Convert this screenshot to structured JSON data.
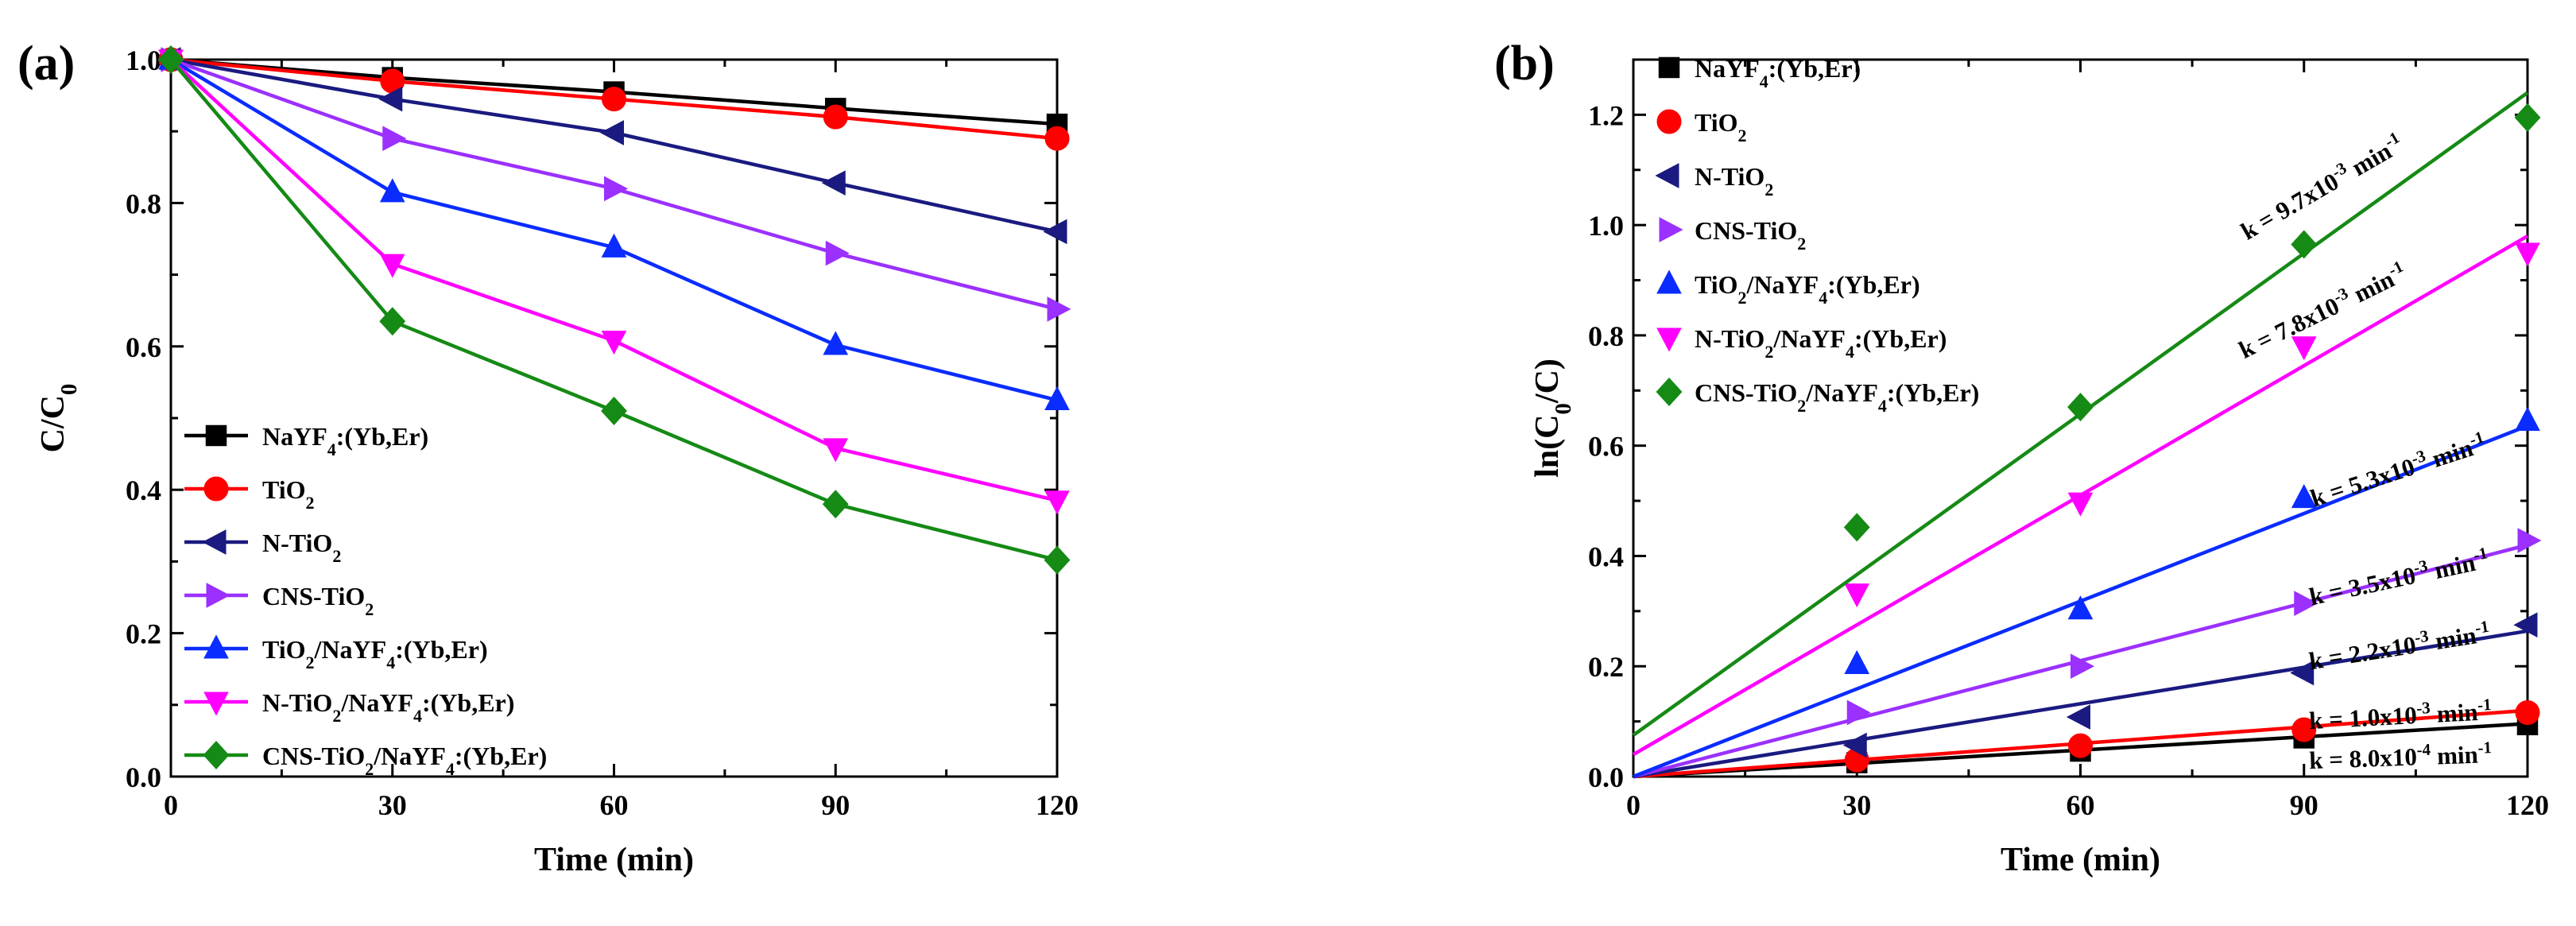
{
  "chart_data": [
    {
      "panel": "(a)",
      "type": "line",
      "title": "",
      "xlabel": "Time (min)",
      "ylabel_parts": [
        {
          "t": "C/C"
        },
        {
          "t": "0",
          "sub": true
        }
      ],
      "xlim": [
        0,
        120
      ],
      "ylim": [
        0.0,
        1.0
      ],
      "xticks": [
        "0",
        "30",
        "60",
        "90",
        "120"
      ],
      "yticks": [
        "0.0",
        "0.2",
        "0.4",
        "0.6",
        "0.8",
        "1.0"
      ],
      "x": [
        0,
        30,
        60,
        90,
        120
      ],
      "legend_position": "bottom-left",
      "series": [
        {
          "id": "s1",
          "color": "#000000",
          "marker": "square",
          "legend_parts": [
            {
              "t": "NaYF"
            },
            {
              "t": "4",
              "sub": true
            },
            {
              "t": ":(Yb,Er)"
            }
          ],
          "values": [
            1.0,
            0.975,
            0.955,
            0.932,
            0.91
          ]
        },
        {
          "id": "s2",
          "color": "#ff0000",
          "marker": "circle",
          "legend_parts": [
            {
              "t": "TiO"
            },
            {
              "t": "2",
              "sub": true
            }
          ],
          "values": [
            1.0,
            0.97,
            0.945,
            0.92,
            0.89
          ]
        },
        {
          "id": "s3",
          "color": "#1a1a80",
          "marker": "tri-left",
          "legend_parts": [
            {
              "t": "N-TiO"
            },
            {
              "t": "2",
              "sub": true
            }
          ],
          "values": [
            1.0,
            0.945,
            0.898,
            0.828,
            0.76
          ]
        },
        {
          "id": "s4",
          "color": "#9b30ff",
          "marker": "tri-right",
          "legend_parts": [
            {
              "t": "CNS-TiO"
            },
            {
              "t": "2",
              "sub": true
            }
          ],
          "values": [
            1.0,
            0.89,
            0.82,
            0.73,
            0.652
          ]
        },
        {
          "id": "s5",
          "color": "#0a2cff",
          "marker": "tri-up",
          "legend_parts": [
            {
              "t": "TiO"
            },
            {
              "t": "2",
              "sub": true
            },
            {
              "t": "/NaYF"
            },
            {
              "t": "4",
              "sub": true
            },
            {
              "t": ":(Yb,Er)"
            }
          ],
          "values": [
            1.0,
            0.815,
            0.738,
            0.602,
            0.525
          ]
        },
        {
          "id": "s6",
          "color": "#ff00ff",
          "marker": "tri-down",
          "legend_parts": [
            {
              "t": "N-TiO"
            },
            {
              "t": "2",
              "sub": true
            },
            {
              "t": "/NaYF"
            },
            {
              "t": "4",
              "sub": true
            },
            {
              "t": ":(Yb,Er)"
            }
          ],
          "values": [
            1.0,
            0.715,
            0.608,
            0.458,
            0.385
          ]
        },
        {
          "id": "s7",
          "color": "#158a15",
          "marker": "diamond",
          "legend_parts": [
            {
              "t": "CNS-TiO"
            },
            {
              "t": "2",
              "sub": true
            },
            {
              "t": "/NaYF"
            },
            {
              "t": "4",
              "sub": true
            },
            {
              "t": ":(Yb,Er)"
            }
          ],
          "values": [
            1.0,
            0.635,
            0.51,
            0.38,
            0.302
          ]
        }
      ]
    },
    {
      "panel": "(b)",
      "type": "scatter",
      "title": "",
      "xlabel": "Time (min)",
      "ylabel_parts": [
        {
          "t": "ln(C"
        },
        {
          "t": "0",
          "sub": true
        },
        {
          "t": "/C)"
        }
      ],
      "xlim": [
        0,
        120
      ],
      "ylim": [
        0.0,
        1.3
      ],
      "xticks": [
        "0",
        "30",
        "60",
        "90",
        "120"
      ],
      "yticks": [
        "0.0",
        "0.2",
        "0.4",
        "0.6",
        "0.8",
        "1.0",
        "1.2"
      ],
      "x": [
        0,
        30,
        60,
        90,
        120
      ],
      "legend_position": "top-left",
      "series": [
        {
          "id": "s1",
          "color": "#000000",
          "marker": "square",
          "legend_parts": [
            {
              "t": "NaYF"
            },
            {
              "t": "4",
              "sub": true
            },
            {
              "t": ":(Yb,Er)"
            }
          ],
          "values": [
            0.0,
            0.025,
            0.046,
            0.07,
            0.094
          ],
          "fit": [
            0.0,
            0.096
          ],
          "k_parts": [
            {
              "t": "k = 8.0x10"
            },
            {
              "t": "-4",
              "sup": true
            },
            {
              "t": " min"
            },
            {
              "t": "-1",
              "sup": true
            }
          ],
          "k_anchor": [
            103,
            0.02
          ],
          "k_angle": -2
        },
        {
          "id": "s2",
          "color": "#ff0000",
          "marker": "circle",
          "legend_parts": [
            {
              "t": "TiO"
            },
            {
              "t": "2",
              "sub": true
            }
          ],
          "values": [
            0.0,
            0.03,
            0.056,
            0.085,
            0.116
          ],
          "fit": [
            0.0,
            0.12
          ],
          "k_parts": [
            {
              "t": "k = 1.0x10"
            },
            {
              "t": "-3",
              "sup": true
            },
            {
              "t": " min"
            },
            {
              "t": "-1",
              "sup": true
            }
          ],
          "k_anchor": [
            103,
            0.095
          ],
          "k_angle": -3
        },
        {
          "id": "s3",
          "color": "#1a1a80",
          "marker": "tri-left",
          "legend_parts": [
            {
              "t": "N-TiO"
            },
            {
              "t": "2",
              "sub": true
            }
          ],
          "values": [
            0.0,
            0.057,
            0.108,
            0.188,
            0.275
          ],
          "fit": [
            0.0,
            0.264
          ],
          "k_parts": [
            {
              "t": "k = 2.2x10"
            },
            {
              "t": "-3",
              "sup": true
            },
            {
              "t": " min"
            },
            {
              "t": "-1",
              "sup": true
            }
          ],
          "k_anchor": [
            103,
            0.22
          ],
          "k_angle": -9
        },
        {
          "id": "s4",
          "color": "#9b30ff",
          "marker": "tri-right",
          "legend_parts": [
            {
              "t": "CNS-TiO"
            },
            {
              "t": "2",
              "sub": true
            }
          ],
          "values": [
            0.0,
            0.116,
            0.2,
            0.314,
            0.428
          ],
          "fit": [
            0.0,
            0.42
          ],
          "k_parts": [
            {
              "t": "k = 3.5x10"
            },
            {
              "t": "-3",
              "sup": true
            },
            {
              "t": " min"
            },
            {
              "t": "-1",
              "sup": true
            }
          ],
          "k_anchor": [
            103,
            0.345
          ],
          "k_angle": -12
        },
        {
          "id": "s5",
          "color": "#0a2cff",
          "marker": "tri-up",
          "legend_parts": [
            {
              "t": "TiO"
            },
            {
              "t": "2",
              "sub": true
            },
            {
              "t": "/NaYF"
            },
            {
              "t": "4",
              "sub": true
            },
            {
              "t": ":(Yb,Er)"
            }
          ],
          "values": [
            0.0,
            0.204,
            0.303,
            0.505,
            0.645
          ],
          "fit": [
            0.0,
            0.636
          ],
          "k_parts": [
            {
              "t": "k = 5.3x10"
            },
            {
              "t": "-3",
              "sup": true
            },
            {
              "t": " min"
            },
            {
              "t": "-1",
              "sup": true
            }
          ],
          "k_anchor": [
            103,
            0.54
          ],
          "k_angle": -18
        },
        {
          "id": "s6",
          "color": "#ff00ff",
          "marker": "tri-down",
          "legend_parts": [
            {
              "t": "N-TiO"
            },
            {
              "t": "2",
              "sub": true
            },
            {
              "t": "/NaYF"
            },
            {
              "t": "4",
              "sub": true
            },
            {
              "t": ":(Yb,Er)"
            }
          ],
          "values": [
            0.0,
            0.332,
            0.497,
            0.78,
            0.95
          ],
          "fit": [
            0.04,
            0.98
          ],
          "k_parts": [
            {
              "t": "k = 7.8x10"
            },
            {
              "t": "-3",
              "sup": true
            },
            {
              "t": " min"
            },
            {
              "t": "-1",
              "sup": true
            }
          ],
          "k_anchor": [
            93,
            0.83
          ],
          "k_angle": -26
        },
        {
          "id": "s7",
          "color": "#158a15",
          "marker": "diamond",
          "legend_parts": [
            {
              "t": "CNS-TiO"
            },
            {
              "t": "2",
              "sub": true
            },
            {
              "t": "/NaYF"
            },
            {
              "t": "4",
              "sub": true
            },
            {
              "t": ":(Yb,Er)"
            }
          ],
          "values": [
            0.0,
            0.452,
            0.67,
            0.965,
            1.195
          ],
          "fit": [
            0.075,
            1.24
          ],
          "k_parts": [
            {
              "t": "k = 9.7x10"
            },
            {
              "t": "-3",
              "sup": true
            },
            {
              "t": " min"
            },
            {
              "t": "-1",
              "sup": true
            }
          ],
          "k_anchor": [
            93,
            1.055
          ],
          "k_angle": -30
        }
      ]
    }
  ]
}
